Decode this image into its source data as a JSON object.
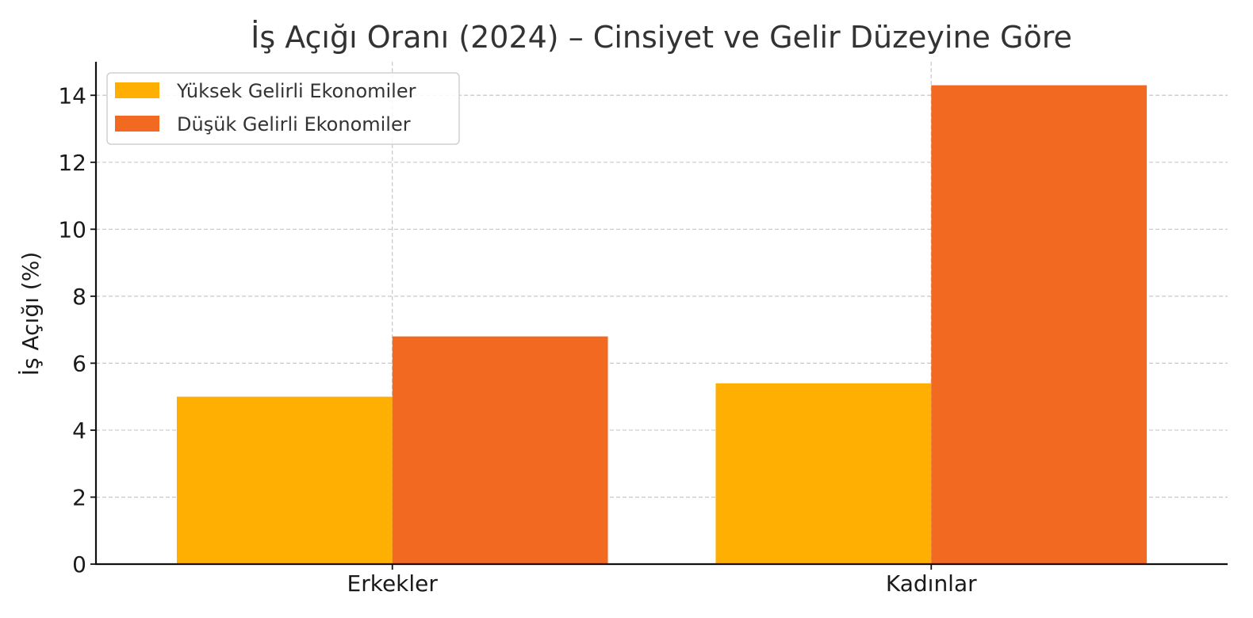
{
  "chart_data": {
    "type": "bar",
    "title": "İş Açığı Oranı (2024) – Cinsiyet ve Gelir Düzeyine Göre",
    "xlabel": "",
    "ylabel": "İş Açığı (%)",
    "categories": [
      "Erkekler",
      "Kadınlar"
    ],
    "series": [
      {
        "name": "Yüksek Gelirli Ekonomiler",
        "color": "#FFAF02",
        "values": [
          5.0,
          5.4
        ]
      },
      {
        "name": "Düşük Gelirli Ekonomiler",
        "color": "#F26A21",
        "values": [
          6.8,
          14.3
        ]
      }
    ],
    "ylim": [
      0,
      15
    ],
    "yticks": [
      0,
      2,
      4,
      6,
      8,
      10,
      12,
      14
    ],
    "grid": true,
    "legend_position": "upper-left"
  }
}
